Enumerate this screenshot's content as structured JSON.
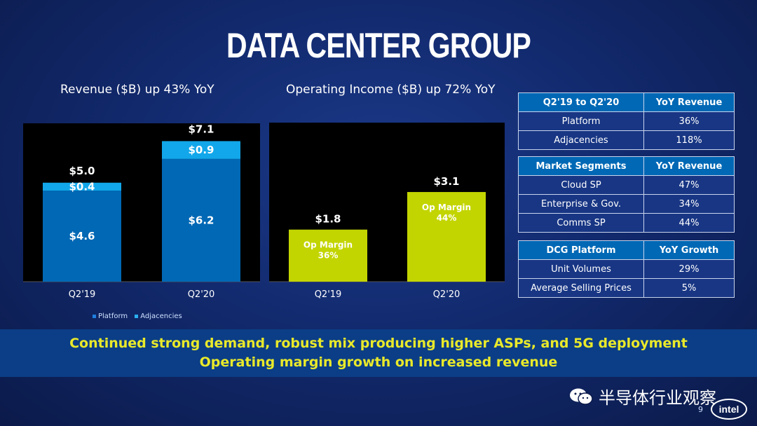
{
  "slide": {
    "title": "DATA CENTER GROUP",
    "page_number": "9",
    "logo_text": "intel",
    "watermark": "半导体行业观察",
    "banner": {
      "line1": "Continued strong demand, robust mix producing higher ASPs, and 5G deployment",
      "line2": "Operating margin growth on increased revenue"
    }
  },
  "chart_data": [
    {
      "type": "bar",
      "title": "Revenue ($B) up 43% YoY",
      "categories": [
        "Q2'19",
        "Q2'20"
      ],
      "stacked": true,
      "series": [
        {
          "name": "Platform",
          "values": [
            4.6,
            6.2
          ],
          "labels": [
            "$4.6",
            "$6.2"
          ],
          "color": "#0068b5"
        },
        {
          "name": "Adjacencies",
          "values": [
            0.4,
            0.9
          ],
          "labels": [
            "$0.4",
            "$0.9"
          ],
          "color": "#12a7ea"
        }
      ],
      "totals": [
        5.0,
        7.1
      ],
      "total_labels": [
        "$5.0",
        "$7.1"
      ],
      "ylim": [
        0,
        8.0
      ],
      "legend": "bottom",
      "grid": false
    },
    {
      "type": "bar",
      "title": "Operating Income ($B) up 72% YoY",
      "categories": [
        "Q2'19",
        "Q2'20"
      ],
      "values": [
        1.8,
        3.1
      ],
      "value_labels": [
        "$1.8",
        "$3.1"
      ],
      "annotations": [
        {
          "line1": "Op Margin",
          "line2": "36%"
        },
        {
          "line1": "Op Margin",
          "line2": "44%"
        }
      ],
      "color": "#c3d500",
      "ylim": [
        0,
        5.5
      ],
      "grid": false
    }
  ],
  "tables": [
    {
      "header": [
        "Q2'19 to Q2'20",
        "YoY Revenue"
      ],
      "rows": [
        [
          "Platform",
          "36%"
        ],
        [
          "Adjacencies",
          "118%"
        ]
      ]
    },
    {
      "header": [
        "Market Segments",
        "YoY Revenue"
      ],
      "rows": [
        [
          "Cloud SP",
          "47%"
        ],
        [
          "Enterprise & Gov.",
          "34%"
        ],
        [
          "Comms SP",
          "44%"
        ]
      ]
    },
    {
      "header": [
        "DCG Platform",
        "YoY Growth"
      ],
      "rows": [
        [
          "Unit Volumes",
          "29%"
        ],
        [
          "Average Selling Prices",
          "5%"
        ]
      ]
    }
  ]
}
